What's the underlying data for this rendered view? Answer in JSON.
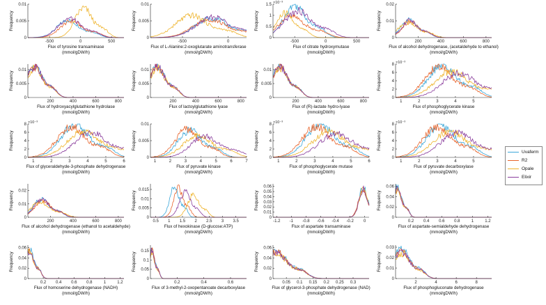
{
  "legend": [
    {
      "name": "Uvaferm",
      "color": "#3aa7d9"
    },
    {
      "name": "R2",
      "color": "#e8632a"
    },
    {
      "name": "Opale",
      "color": "#eeb32a"
    },
    {
      "name": "Elixir",
      "color": "#8a3d9c"
    }
  ],
  "chart_data": [
    {
      "type": "line",
      "title": "",
      "xlabel": "Flux of tyrosine transaminase",
      "units": "(mmol/gDW/h)",
      "ylabel": "Frequency",
      "xlim": [
        -850,
        700
      ],
      "ylim": [
        0,
        0.01
      ],
      "xticks": [
        -500,
        0,
        500
      ],
      "yticks": [
        0,
        0.005,
        0.01
      ],
      "ytick_labels": [
        "0",
        "0.005",
        "0.01"
      ],
      "scale_label": "",
      "peaks": [
        -200,
        -150,
        50,
        -180
      ],
      "widths": [
        250,
        250,
        200,
        250
      ],
      "series_values": [
        0.0052,
        0.0049,
        0.0088,
        0.0058
      ]
    },
    {
      "type": "line",
      "title": "",
      "xlabel": "Flux of  L-Alanine:2-oxoglutarate aminotransferase",
      "units": "(mmol/gDW/h)",
      "ylabel": "Frequency",
      "xlim": [
        -850,
        200
      ],
      "ylim": [
        0,
        0.01
      ],
      "xticks": [
        -500,
        0
      ],
      "yticks": [
        0,
        0.005,
        0.01
      ],
      "ytick_labels": [
        "0",
        "0.005",
        "0.01"
      ],
      "scale_label": "",
      "peaks": [
        -180,
        -200,
        -400,
        -160
      ],
      "widths": [
        260,
        260,
        250,
        260
      ],
      "series_values": [
        0.0058,
        0.0054,
        0.0066,
        0.0061
      ]
    },
    {
      "type": "line",
      "title": "",
      "xlabel": "Flux of citrate hydroxymutase",
      "units": "(mmol/gDW/h)",
      "ylabel": "Frequency",
      "xlim": [
        -850,
        700
      ],
      "ylim": [
        0,
        0.0015
      ],
      "xticks": [
        -500,
        0,
        500
      ],
      "yticks": [
        0,
        0.0005,
        0.001,
        0.0015
      ],
      "ytick_labels": [
        "0",
        "0.5",
        "1",
        "1.5"
      ],
      "scale_label": "×10⁻³",
      "peaks": [
        -500,
        -550,
        -650,
        -450
      ],
      "widths": [
        250,
        300,
        200,
        300
      ],
      "series_values": [
        0.00145,
        0.00095,
        0.0011,
        0.0012
      ]
    },
    {
      "type": "line",
      "title": "",
      "xlabel": "Flux of alcohol dehydrogenase, (acetaldehyde to ethanol)",
      "units": "(mmol/gDW/h)",
      "ylabel": "Frequency",
      "xlim": [
        0,
        850
      ],
      "ylim": [
        0,
        0.02
      ],
      "xticks": [
        200,
        400,
        600,
        800
      ],
      "yticks": [
        0,
        0.01,
        0.02
      ],
      "ytick_labels": [
        "0",
        "0.01",
        "0.02"
      ],
      "scale_label": "",
      "peaks": [
        120,
        130,
        110,
        125
      ],
      "widths": [
        100,
        100,
        120,
        100
      ],
      "series_values": [
        0.0108,
        0.0098,
        0.0089,
        0.0102
      ]
    },
    {
      "type": "line",
      "title": "",
      "xlabel": "Flux of hydroxyacylglutathione hydrolase",
      "units": "(mmol/gDW/h)",
      "ylabel": "Frequency",
      "xlim": [
        0,
        850
      ],
      "ylim": [
        0,
        0.012
      ],
      "xticks": [
        200,
        400,
        600,
        800
      ],
      "yticks": [
        0,
        0.005,
        0.01
      ],
      "ytick_labels": [
        "0",
        "0.005",
        "0.01"
      ],
      "scale_label": "",
      "peaks": [
        60,
        60,
        60,
        60
      ],
      "widths": [
        100,
        100,
        100,
        100
      ],
      "series_values": [
        0.0112,
        0.0108,
        0.0105,
        0.011
      ]
    },
    {
      "type": "line",
      "title": "",
      "xlabel": "Flux of lactoylglutathione lyase",
      "units": "(mmol/gDW/h)",
      "ylabel": "Frequency",
      "xlim": [
        0,
        850
      ],
      "ylim": [
        0,
        0.012
      ],
      "xticks": [
        200,
        400,
        600,
        800
      ],
      "yticks": [
        0,
        0.005,
        0.01
      ],
      "ytick_labels": [
        "0",
        "0.005",
        "0.01"
      ],
      "scale_label": "",
      "peaks": [
        60,
        60,
        60,
        60
      ],
      "widths": [
        100,
        100,
        100,
        100
      ],
      "series_values": [
        0.0112,
        0.0108,
        0.0105,
        0.011
      ]
    },
    {
      "type": "line",
      "title": "",
      "xlabel": "Flux of (R)-lactate hydro-lyase",
      "units": "(mmol/gDW/h)",
      "ylabel": "Frequency",
      "xlim": [
        0,
        850
      ],
      "ylim": [
        0,
        0.012
      ],
      "xticks": [
        200,
        400,
        600,
        800
      ],
      "yticks": [
        0,
        0.005,
        0.01
      ],
      "ytick_labels": [
        "0",
        "0.005",
        "0.01"
      ],
      "scale_label": "",
      "peaks": [
        60,
        60,
        60,
        60
      ],
      "widths": [
        100,
        100,
        100,
        100
      ],
      "series_values": [
        0.0112,
        0.0108,
        0.0105,
        0.011
      ]
    },
    {
      "type": "line",
      "title": "",
      "xlabel": "Flux of phosphoglycerate kinase",
      "units": "(mmol/gDW/h)",
      "ylabel": "Frequency",
      "xlim": [
        0.7,
        6
      ],
      "ylim": [
        0,
        0.008
      ],
      "xticks": [
        1,
        2,
        3,
        4,
        5
      ],
      "yticks": [
        0,
        0.002,
        0.004,
        0.006,
        0.008
      ],
      "ytick_labels": [
        "0",
        "2",
        "4",
        "6",
        "8"
      ],
      "scale_label": "×10⁻³",
      "peaks": [
        3.3,
        3.1,
        3.8,
        4.2
      ],
      "widths": [
        1.1,
        1.1,
        1.3,
        1.3
      ],
      "series_values": [
        0.0078,
        0.0074,
        0.0062,
        0.0058
      ]
    },
    {
      "type": "line",
      "title": "",
      "xlabel": "Flux of glyceraldehyde-3-phosphate dehydrogenase",
      "units": "(mmol/gDW/h)",
      "ylabel": "Frequency",
      "xlim": [
        0.7,
        6
      ],
      "ylim": [
        0,
        0.008
      ],
      "xticks": [
        1,
        2,
        3,
        4,
        5,
        6
      ],
      "yticks": [
        0,
        0.002,
        0.004,
        0.006,
        0.008
      ],
      "ytick_labels": [
        "0",
        "2",
        "4",
        "6",
        "8"
      ],
      "scale_label": "×10⁻³",
      "peaks": [
        3.3,
        3.1,
        3.8,
        4.2
      ],
      "widths": [
        1.1,
        1.1,
        1.3,
        1.3
      ],
      "series_values": [
        0.0078,
        0.0074,
        0.0062,
        0.0058
      ]
    },
    {
      "type": "line",
      "title": "",
      "xlabel": "Flux of pyruvate kinase",
      "units": "(mmol/gDW/h)",
      "ylabel": "Frequency",
      "xlim": [
        0.7,
        7
      ],
      "ylim": [
        0,
        0.01
      ],
      "xticks": [
        1,
        2,
        3,
        4,
        5,
        6,
        7
      ],
      "yticks": [
        0,
        0.005,
        0.01
      ],
      "ytick_labels": [
        "0",
        "0.005",
        "0.01"
      ],
      "scale_label": "",
      "peaks": [
        3.3,
        3.1,
        3.8,
        4.3
      ],
      "widths": [
        1.1,
        1.1,
        1.3,
        1.3
      ],
      "series_values": [
        0.0081,
        0.0084,
        0.0068,
        0.0064
      ]
    },
    {
      "type": "line",
      "title": "",
      "xlabel": "Flux of phosphoglycerate mutase",
      "units": "(mmol/gDW/h)",
      "ylabel": "Frequency",
      "xlim": [
        0.7,
        6
      ],
      "ylim": [
        0,
        0.008
      ],
      "xticks": [
        1,
        2,
        3,
        4,
        5,
        6
      ],
      "yticks": [
        0,
        0.002,
        0.004,
        0.006,
        0.008
      ],
      "ytick_labels": [
        "0",
        "2",
        "4",
        "6",
        "8"
      ],
      "scale_label": "×10⁻³",
      "peaks": [
        3.3,
        3.1,
        3.8,
        4.2
      ],
      "widths": [
        1.1,
        1.1,
        1.3,
        1.3
      ],
      "series_values": [
        0.0078,
        0.0074,
        0.0062,
        0.0058
      ]
    },
    {
      "type": "line",
      "title": "",
      "xlabel": "Flux of pyruvate decarboxylase",
      "units": "(mmol/gDW/h)",
      "ylabel": "Frequency",
      "xlim": [
        0.7,
        6
      ],
      "ylim": [
        0,
        0.008
      ],
      "xticks": [
        1,
        2,
        3,
        4,
        5
      ],
      "yticks": [
        0,
        0.002,
        0.004,
        0.006,
        0.008
      ],
      "ytick_labels": [
        "0",
        "2",
        "4",
        "6",
        "8"
      ],
      "scale_label": "×10⁻³",
      "peaks": [
        3.2,
        3.0,
        3.7,
        4.1
      ],
      "widths": [
        1.1,
        1.1,
        1.3,
        1.3
      ],
      "series_values": [
        0.0078,
        0.0074,
        0.0062,
        0.0058
      ]
    },
    {
      "type": "line",
      "title": "",
      "xlabel": "Flux of alcohol dehydrogenase (ethanol to acetaldehyde)",
      "units": "(mmol/gDW/h)",
      "ylabel": "Frequency",
      "xlim": [
        0,
        850
      ],
      "ylim": [
        0,
        0.025
      ],
      "xticks": [
        200,
        400,
        600,
        800
      ],
      "yticks": [
        0,
        0.01,
        0.02
      ],
      "ytick_labels": [
        "0",
        "0.01",
        "0.02"
      ],
      "scale_label": "",
      "peaks": [
        120,
        130,
        110,
        125
      ],
      "widths": [
        100,
        100,
        120,
        100
      ],
      "series_values": [
        0.0135,
        0.0125,
        0.0112,
        0.013
      ]
    },
    {
      "type": "line",
      "title": "",
      "xlabel": "Flux of hexokinase (D-glucose:ATP)",
      "units": "(mmol/gDW/h)",
      "ylabel": "Frequency",
      "xlim": [
        0.3,
        3.9
      ],
      "ylim": [
        0,
        0.018
      ],
      "xticks": [
        0.5,
        1,
        1.5,
        2,
        2.5,
        3,
        3.5
      ],
      "yticks": [
        0,
        0.005,
        0.01,
        0.015
      ],
      "ytick_labels": [
        "0",
        "0.005",
        "0.01",
        "0.015"
      ],
      "scale_label": "",
      "peaks": [
        1.2,
        1.35,
        1.9,
        1.6
      ],
      "widths": [
        0.25,
        0.25,
        0.3,
        0.3
      ],
      "series_values": [
        0.0165,
        0.0155,
        0.012,
        0.0135
      ]
    },
    {
      "type": "line",
      "title": "",
      "xlabel": "Flux of aspartate transaminase",
      "units": "(mmol/gDW/h)",
      "ylabel": "Frequency",
      "xlim": [
        -1.25,
        0.06
      ],
      "ylim": [
        0,
        0.065
      ],
      "xticks": [
        -1.2,
        -1,
        -0.8,
        -0.6,
        -0.4,
        -0.2,
        0
      ],
      "yticks": [
        0,
        0.01,
        0.02,
        0.03,
        0.04,
        0.05,
        0.06
      ],
      "ytick_labels": [
        "0",
        "0.01",
        "0.02",
        "0.03",
        "0.04",
        "0.05",
        "0.06"
      ],
      "scale_label": "",
      "peaks": [
        -0.02,
        -0.025,
        -0.02,
        -0.022
      ],
      "widths": [
        0.08,
        0.08,
        0.08,
        0.08
      ],
      "series_values": [
        0.058,
        0.055,
        0.052,
        0.054
      ]
    },
    {
      "type": "line",
      "title": "",
      "xlabel": "Flux of aspartate-semialdehyde dehydrogenase",
      "units": "(mmol/gDW/h)",
      "ylabel": "Frequency",
      "xlim": [
        0,
        1.25
      ],
      "ylim": [
        0,
        0.065
      ],
      "xticks": [
        0.2,
        0.4,
        0.6,
        0.8,
        1,
        1.2
      ],
      "yticks": [
        0,
        0.02,
        0.04,
        0.06
      ],
      "ytick_labels": [
        "0",
        "0.02",
        "0.04",
        "0.06"
      ],
      "scale_label": "",
      "peaks": [
        0.02,
        0.02,
        0.02,
        0.02
      ],
      "widths": [
        0.08,
        0.08,
        0.08,
        0.08
      ],
      "series_values": [
        0.058,
        0.055,
        0.052,
        0.054
      ]
    },
    {
      "type": "line",
      "title": "",
      "xlabel": "Flux of homoserine dehydrogenase (NADH)",
      "units": "(mmol/gDW/h)",
      "ylabel": "Frequency",
      "xlim": [
        0,
        1.25
      ],
      "ylim": [
        0,
        0.065
      ],
      "xticks": [
        0.2,
        0.4,
        0.6,
        0.8,
        1,
        1.2
      ],
      "yticks": [
        0,
        0.02,
        0.04,
        0.06
      ],
      "ytick_labels": [
        "0",
        "0.02",
        "0.04",
        "0.06"
      ],
      "scale_label": "",
      "peaks": [
        0.02,
        0.02,
        0.02,
        0.02
      ],
      "widths": [
        0.08,
        0.08,
        0.08,
        0.08
      ],
      "series_values": [
        0.058,
        0.055,
        0.052,
        0.054
      ]
    },
    {
      "type": "line",
      "title": "",
      "xlabel": "Flux of 3-methyl-2-oxopentanoate decarboxylase",
      "units": "(mmol/gDW/h)",
      "ylabel": "Frequency",
      "xlim": [
        0,
        0.72
      ],
      "ylim": [
        0,
        0.18
      ],
      "xticks": [
        0.2,
        0.4,
        0.6
      ],
      "yticks": [
        0,
        0.05,
        0.1,
        0.15
      ],
      "ytick_labels": [
        "0",
        "0.05",
        "0.1",
        "0.15"
      ],
      "scale_label": "",
      "peaks": [
        0.01,
        0.01,
        0.01,
        0.01
      ],
      "widths": [
        0.03,
        0.03,
        0.03,
        0.03
      ],
      "series_values": [
        0.16,
        0.15,
        0.14,
        0.15
      ]
    },
    {
      "type": "line",
      "title": "",
      "xlabel": "Flux of glycerol-3-phosphate dehydrogenase (NAD)",
      "units": "(mmol/gDW/h)",
      "ylabel": "Frequency",
      "xlim": [
        0,
        0.36
      ],
      "ylim": [
        0,
        0.065
      ],
      "xticks": [
        0.05,
        0.1,
        0.15,
        0.2,
        0.25,
        0.3
      ],
      "yticks": [
        0,
        0.02,
        0.04,
        0.06
      ],
      "ytick_labels": [
        "0",
        "0.02",
        "0.04",
        "0.06"
      ],
      "scale_label": "",
      "peaks": [
        0.01,
        0.01,
        0.01,
        0.01
      ],
      "widths": [
        0.06,
        0.06,
        0.06,
        0.06
      ],
      "series_values": [
        0.055,
        0.052,
        0.05,
        0.051
      ]
    },
    {
      "type": "line",
      "title": "",
      "xlabel": "Flux of phosphogluconate dehydrogenase",
      "units": "(mmol/gDW/h)",
      "ylabel": "Frequency",
      "xlim": [
        0,
        9.5
      ],
      "ylim": [
        0,
        0.032
      ],
      "xticks": [
        2,
        4,
        6,
        8
      ],
      "yticks": [
        0,
        0.01,
        0.02,
        0.03
      ],
      "ytick_labels": [
        "0",
        "0.01",
        "0.02",
        "0.03"
      ],
      "scale_label": "",
      "peaks": [
        0.6,
        0.6,
        0.6,
        0.6
      ],
      "widths": [
        1.2,
        1.2,
        1.2,
        1.2
      ],
      "series_values": [
        0.028,
        0.026,
        0.024,
        0.025
      ]
    }
  ]
}
